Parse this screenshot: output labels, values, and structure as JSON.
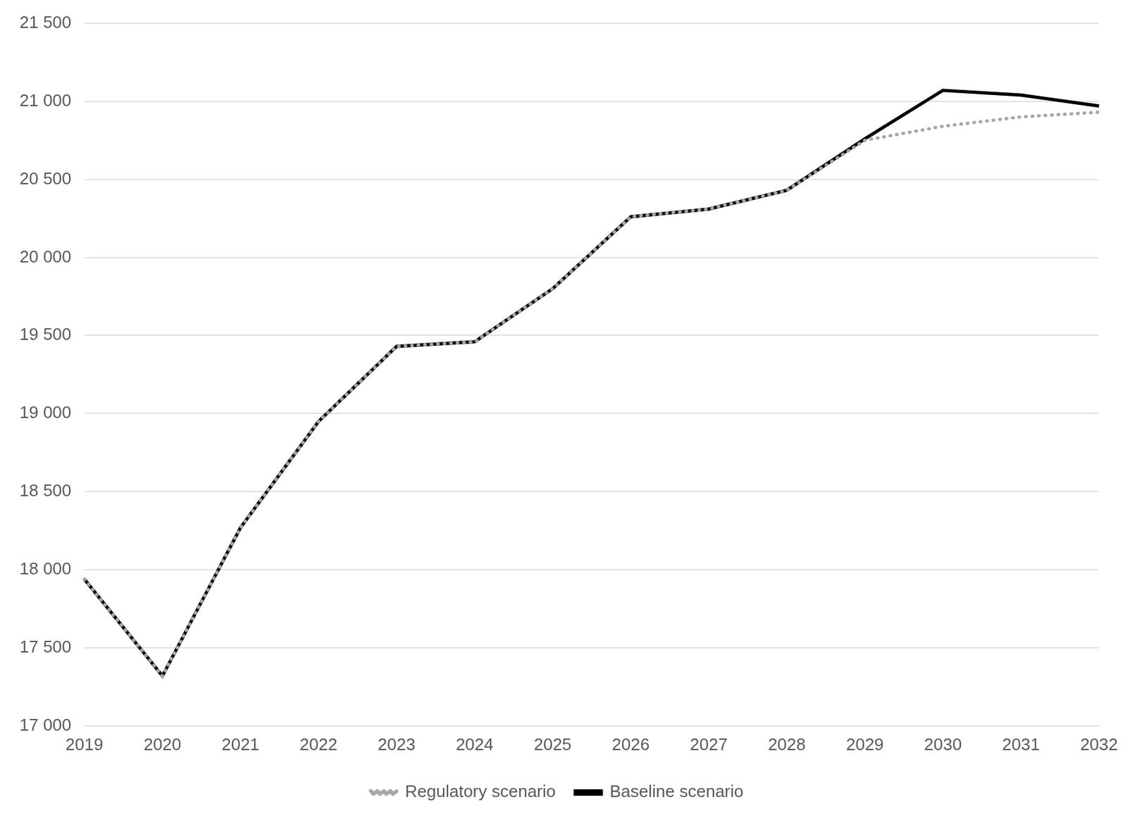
{
  "chart_data": {
    "type": "line",
    "categories": [
      "2019",
      "2020",
      "2021",
      "2022",
      "2023",
      "2024",
      "2025",
      "2026",
      "2027",
      "2028",
      "2029",
      "2030",
      "2031",
      "2032"
    ],
    "series": [
      {
        "name": "Baseline scenario",
        "color": "#000000",
        "line_style": "solid",
        "values": [
          17940,
          17320,
          18270,
          18950,
          19430,
          19460,
          19800,
          20260,
          20310,
          20430,
          20760,
          21070,
          21040,
          20970
        ]
      },
      {
        "name": "Regulatory scenario",
        "color": "#a6a6a6",
        "line_style": "dotted",
        "values": [
          17940,
          17320,
          18270,
          18950,
          19430,
          19460,
          19800,
          20260,
          20310,
          20430,
          20750,
          20840,
          20900,
          20930
        ]
      }
    ],
    "ylim": [
      17000,
      21500
    ],
    "yticks": [
      {
        "value": 17000,
        "label": "17 000"
      },
      {
        "value": 17500,
        "label": "17 500"
      },
      {
        "value": 18000,
        "label": "18 000"
      },
      {
        "value": 18500,
        "label": "18 500"
      },
      {
        "value": 19000,
        "label": "19 000"
      },
      {
        "value": 19500,
        "label": "19 500"
      },
      {
        "value": 20000,
        "label": "20 000"
      },
      {
        "value": 20500,
        "label": "20 500"
      },
      {
        "value": 21000,
        "label": "21 000"
      },
      {
        "value": 21500,
        "label": "21 500"
      }
    ],
    "grid": true,
    "legend": "bottom"
  }
}
